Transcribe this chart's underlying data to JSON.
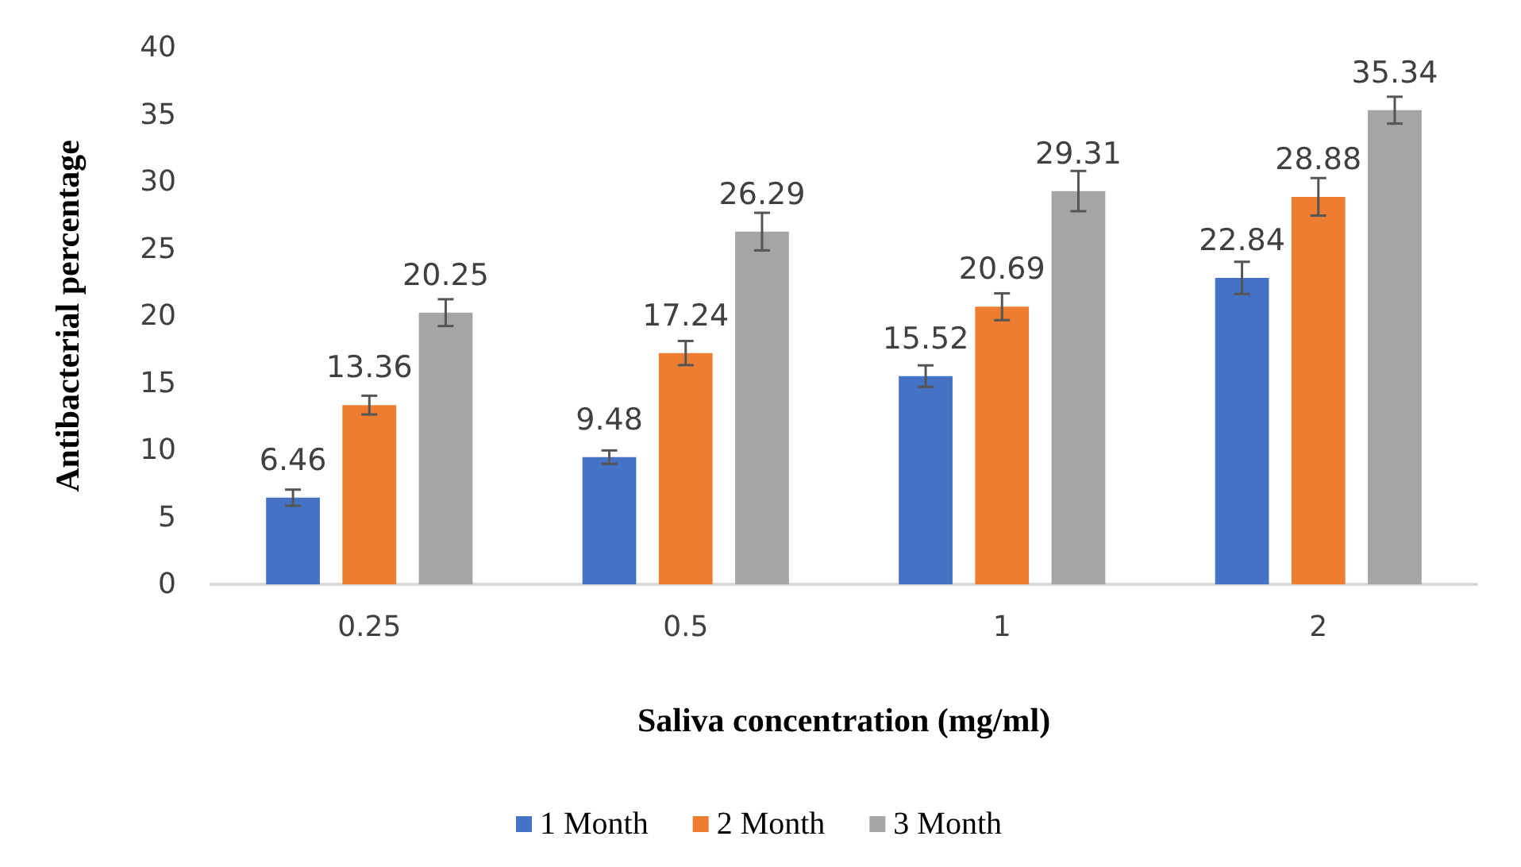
{
  "chart_data": {
    "type": "bar",
    "xlabel": "Saliva concentration (mg/ml)",
    "ylabel": "Antibacterial percentage",
    "categories": [
      "0.25",
      "0.5",
      "1",
      "2"
    ],
    "series": [
      {
        "name": "1 Month",
        "color": "#4472c4",
        "values": [
          6.46,
          9.48,
          15.52,
          22.84
        ],
        "errors": [
          0.6,
          0.5,
          0.8,
          1.2
        ]
      },
      {
        "name": "2 Month",
        "color": "#ed7d31",
        "values": [
          13.36,
          17.24,
          20.69,
          28.88
        ],
        "errors": [
          0.7,
          0.9,
          1.0,
          1.4
        ]
      },
      {
        "name": "3 Month",
        "color": "#a5a5a5",
        "values": [
          20.25,
          26.29,
          29.31,
          35.34
        ],
        "errors": [
          1.0,
          1.4,
          1.5,
          1.0
        ]
      }
    ],
    "ylim": [
      0,
      40
    ],
    "yticks": [
      0,
      5,
      10,
      15,
      20,
      25,
      30,
      35,
      40
    ],
    "grid": false,
    "legend": "bottom",
    "data_labels": true
  }
}
